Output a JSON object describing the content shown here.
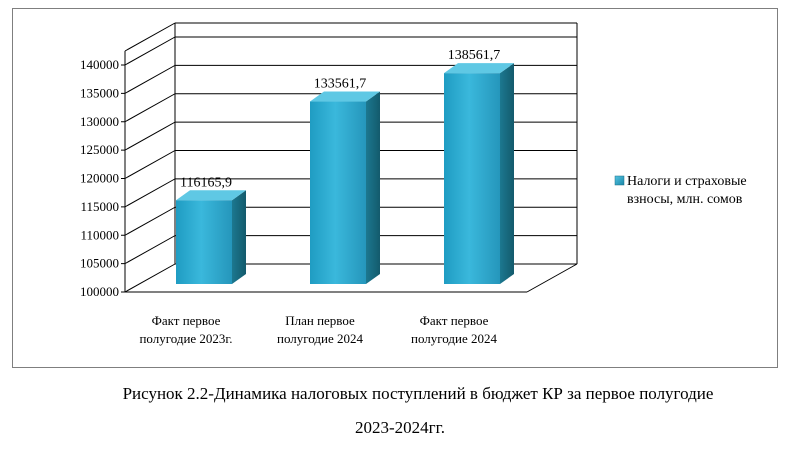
{
  "chart_data": {
    "type": "bar",
    "categories": [
      [
        "Факт первое",
        "полугодие 2023г."
      ],
      [
        "План первое",
        "полугодие 2024"
      ],
      [
        "Факт первое",
        "полугодие 2024"
      ]
    ],
    "series": [
      {
        "name": "Налоги и страховые взносы, млн. сомов",
        "values": [
          116165.9,
          133561.7,
          138561.7
        ],
        "labels": [
          "116165,9",
          "133561,7",
          "138561,7"
        ]
      }
    ],
    "legend": {
      "lines": [
        "Налоги и страховые",
        "взносы, млн. сомов"
      ],
      "position": "right"
    },
    "ylim": [
      100000,
      140000
    ],
    "yticks": [
      100000,
      105000,
      110000,
      115000,
      120000,
      125000,
      130000,
      135000,
      140000
    ],
    "grid": true,
    "style": "3d",
    "colors": {
      "bar_front": "#2aa8cc",
      "bar_side": "#1a6f86",
      "bar_top": "#5fc8e4",
      "grid": "#000000"
    }
  },
  "caption": {
    "line1": "Рисунок 2.2-Динамика налоговых поступлений в бюджет КР за первое полугодие",
    "line2": "2023-2024гг."
  }
}
